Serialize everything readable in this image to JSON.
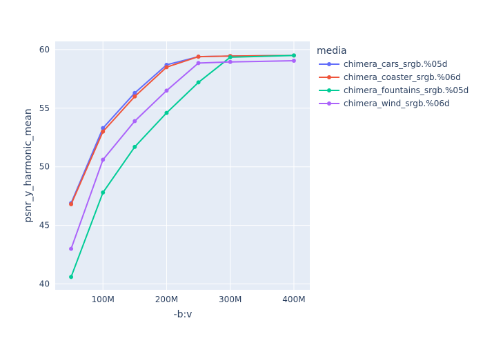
{
  "chart_data": {
    "type": "line",
    "xlabel": "-b:v",
    "ylabel": "psnr_y_harmonic_mean",
    "legend_title": "media",
    "legend_position": "right",
    "grid": true,
    "xlim": [
      25000000,
      425000000
    ],
    "ylim": [
      39.5,
      60.7
    ],
    "x_ticks": [
      100000000,
      200000000,
      300000000,
      400000000
    ],
    "x_tick_labels": [
      "100M",
      "200M",
      "300M",
      "400M"
    ],
    "y_ticks": [
      40,
      45,
      50,
      55,
      60
    ],
    "y_tick_labels": [
      "40",
      "45",
      "50",
      "55",
      "60"
    ],
    "x": [
      50000000,
      100000000,
      150000000,
      200000000,
      250000000,
      300000000,
      400000000
    ],
    "series": [
      {
        "name": "chimera_cars_srgb.%05d",
        "color": "#636efa",
        "values": [
          46.9,
          53.3,
          56.3,
          58.7,
          59.4,
          59.45,
          59.5
        ]
      },
      {
        "name": "chimera_coaster_srgb.%06d",
        "color": "#ef553b",
        "values": [
          46.8,
          53.0,
          56.0,
          58.5,
          59.4,
          59.45,
          59.5
        ]
      },
      {
        "name": "chimera_fountains_srgb.%05d",
        "color": "#00cc96",
        "values": [
          40.6,
          47.8,
          51.7,
          54.6,
          57.2,
          59.35,
          59.5
        ]
      },
      {
        "name": "chimera_wind_srgb.%06d",
        "color": "#ab63fa",
        "values": [
          43.0,
          50.6,
          53.9,
          56.5,
          58.85,
          58.95,
          59.05
        ]
      }
    ]
  }
}
